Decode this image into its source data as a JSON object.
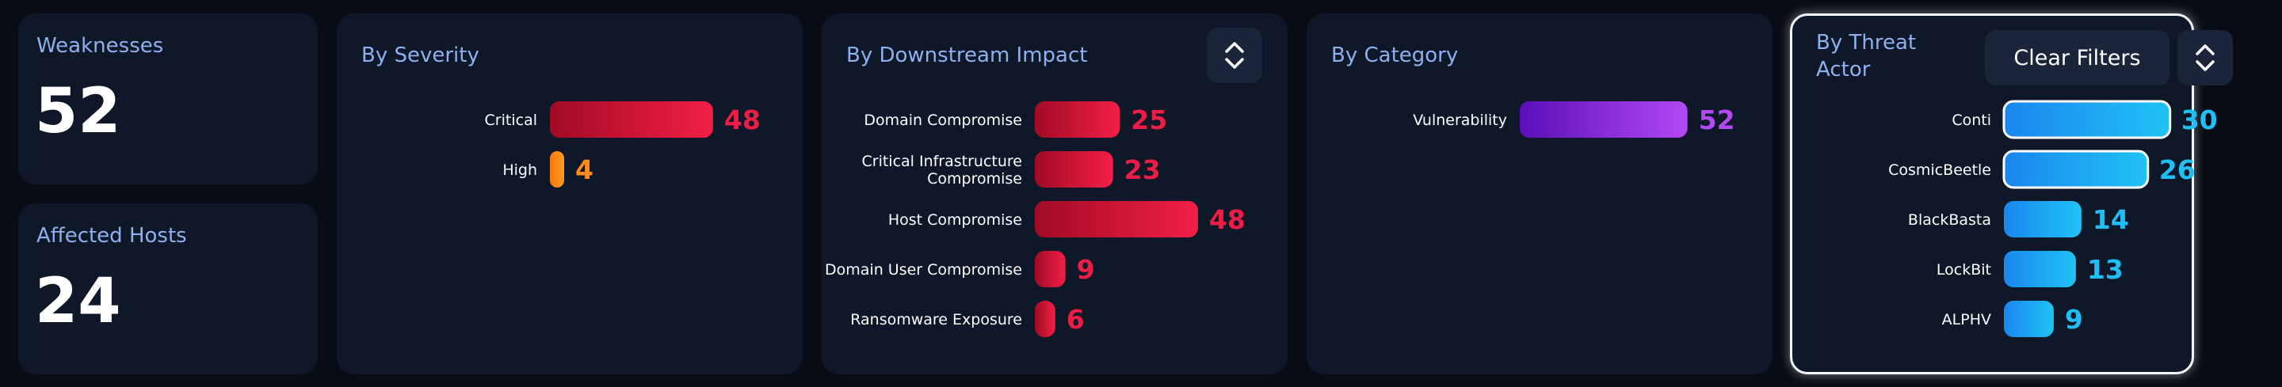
{
  "stats": {
    "weaknesses": {
      "label": "Weaknesses",
      "value": "52"
    },
    "affected_hosts": {
      "label": "Affected Hosts",
      "value": "24"
    }
  },
  "panels": {
    "severity": {
      "title": "By Severity"
    },
    "impact": {
      "title": "By Downstream Impact",
      "sort_icon": "chevron-up-down-icon"
    },
    "category": {
      "title": "By Category"
    },
    "threat": {
      "title_line1": "By Threat",
      "title_line2": "Actor",
      "clear_label": "Clear Filters",
      "sort_icon": "chevron-up-down-icon"
    }
  },
  "colors": {
    "background": "#080c14",
    "card": "#0f1829",
    "title": "#8fb0ee",
    "red": "#ee1d45",
    "red_dark": "#a10b25",
    "orange": "#ff8c1a",
    "purple": "#b349f5",
    "purple_dark": "#5a0fb8",
    "blue": "#1fbff5",
    "blue_dark": "#1a86ee"
  },
  "chart_data": [
    {
      "type": "bar",
      "orientation": "horizontal",
      "title": "By Severity",
      "categories": [
        "Critical",
        "High"
      ],
      "values": [
        48,
        4
      ],
      "colors": [
        "red",
        "orange"
      ]
    },
    {
      "type": "bar",
      "orientation": "horizontal",
      "title": "By Downstream Impact",
      "categories": [
        "Domain Compromise",
        "Critical Infrastructure Compromise",
        "Host Compromise",
        "Domain User Compromise",
        "Ransomware Exposure"
      ],
      "values": [
        25,
        23,
        48,
        9,
        6
      ],
      "colors": [
        "red",
        "red",
        "red",
        "red",
        "red"
      ]
    },
    {
      "type": "bar",
      "orientation": "horizontal",
      "title": "By Category",
      "categories": [
        "Vulnerability"
      ],
      "values": [
        52
      ],
      "colors": [
        "purple"
      ]
    },
    {
      "type": "bar",
      "orientation": "horizontal",
      "title": "By Threat Actor",
      "categories": [
        "Conti",
        "CosmicBeetle",
        "BlackBasta",
        "LockBit",
        "ALPHV"
      ],
      "values": [
        30,
        26,
        14,
        13,
        9
      ],
      "colors": [
        "blue",
        "blue",
        "blue",
        "blue",
        "blue"
      ],
      "selected": [
        "Conti",
        "CosmicBeetle"
      ]
    }
  ]
}
